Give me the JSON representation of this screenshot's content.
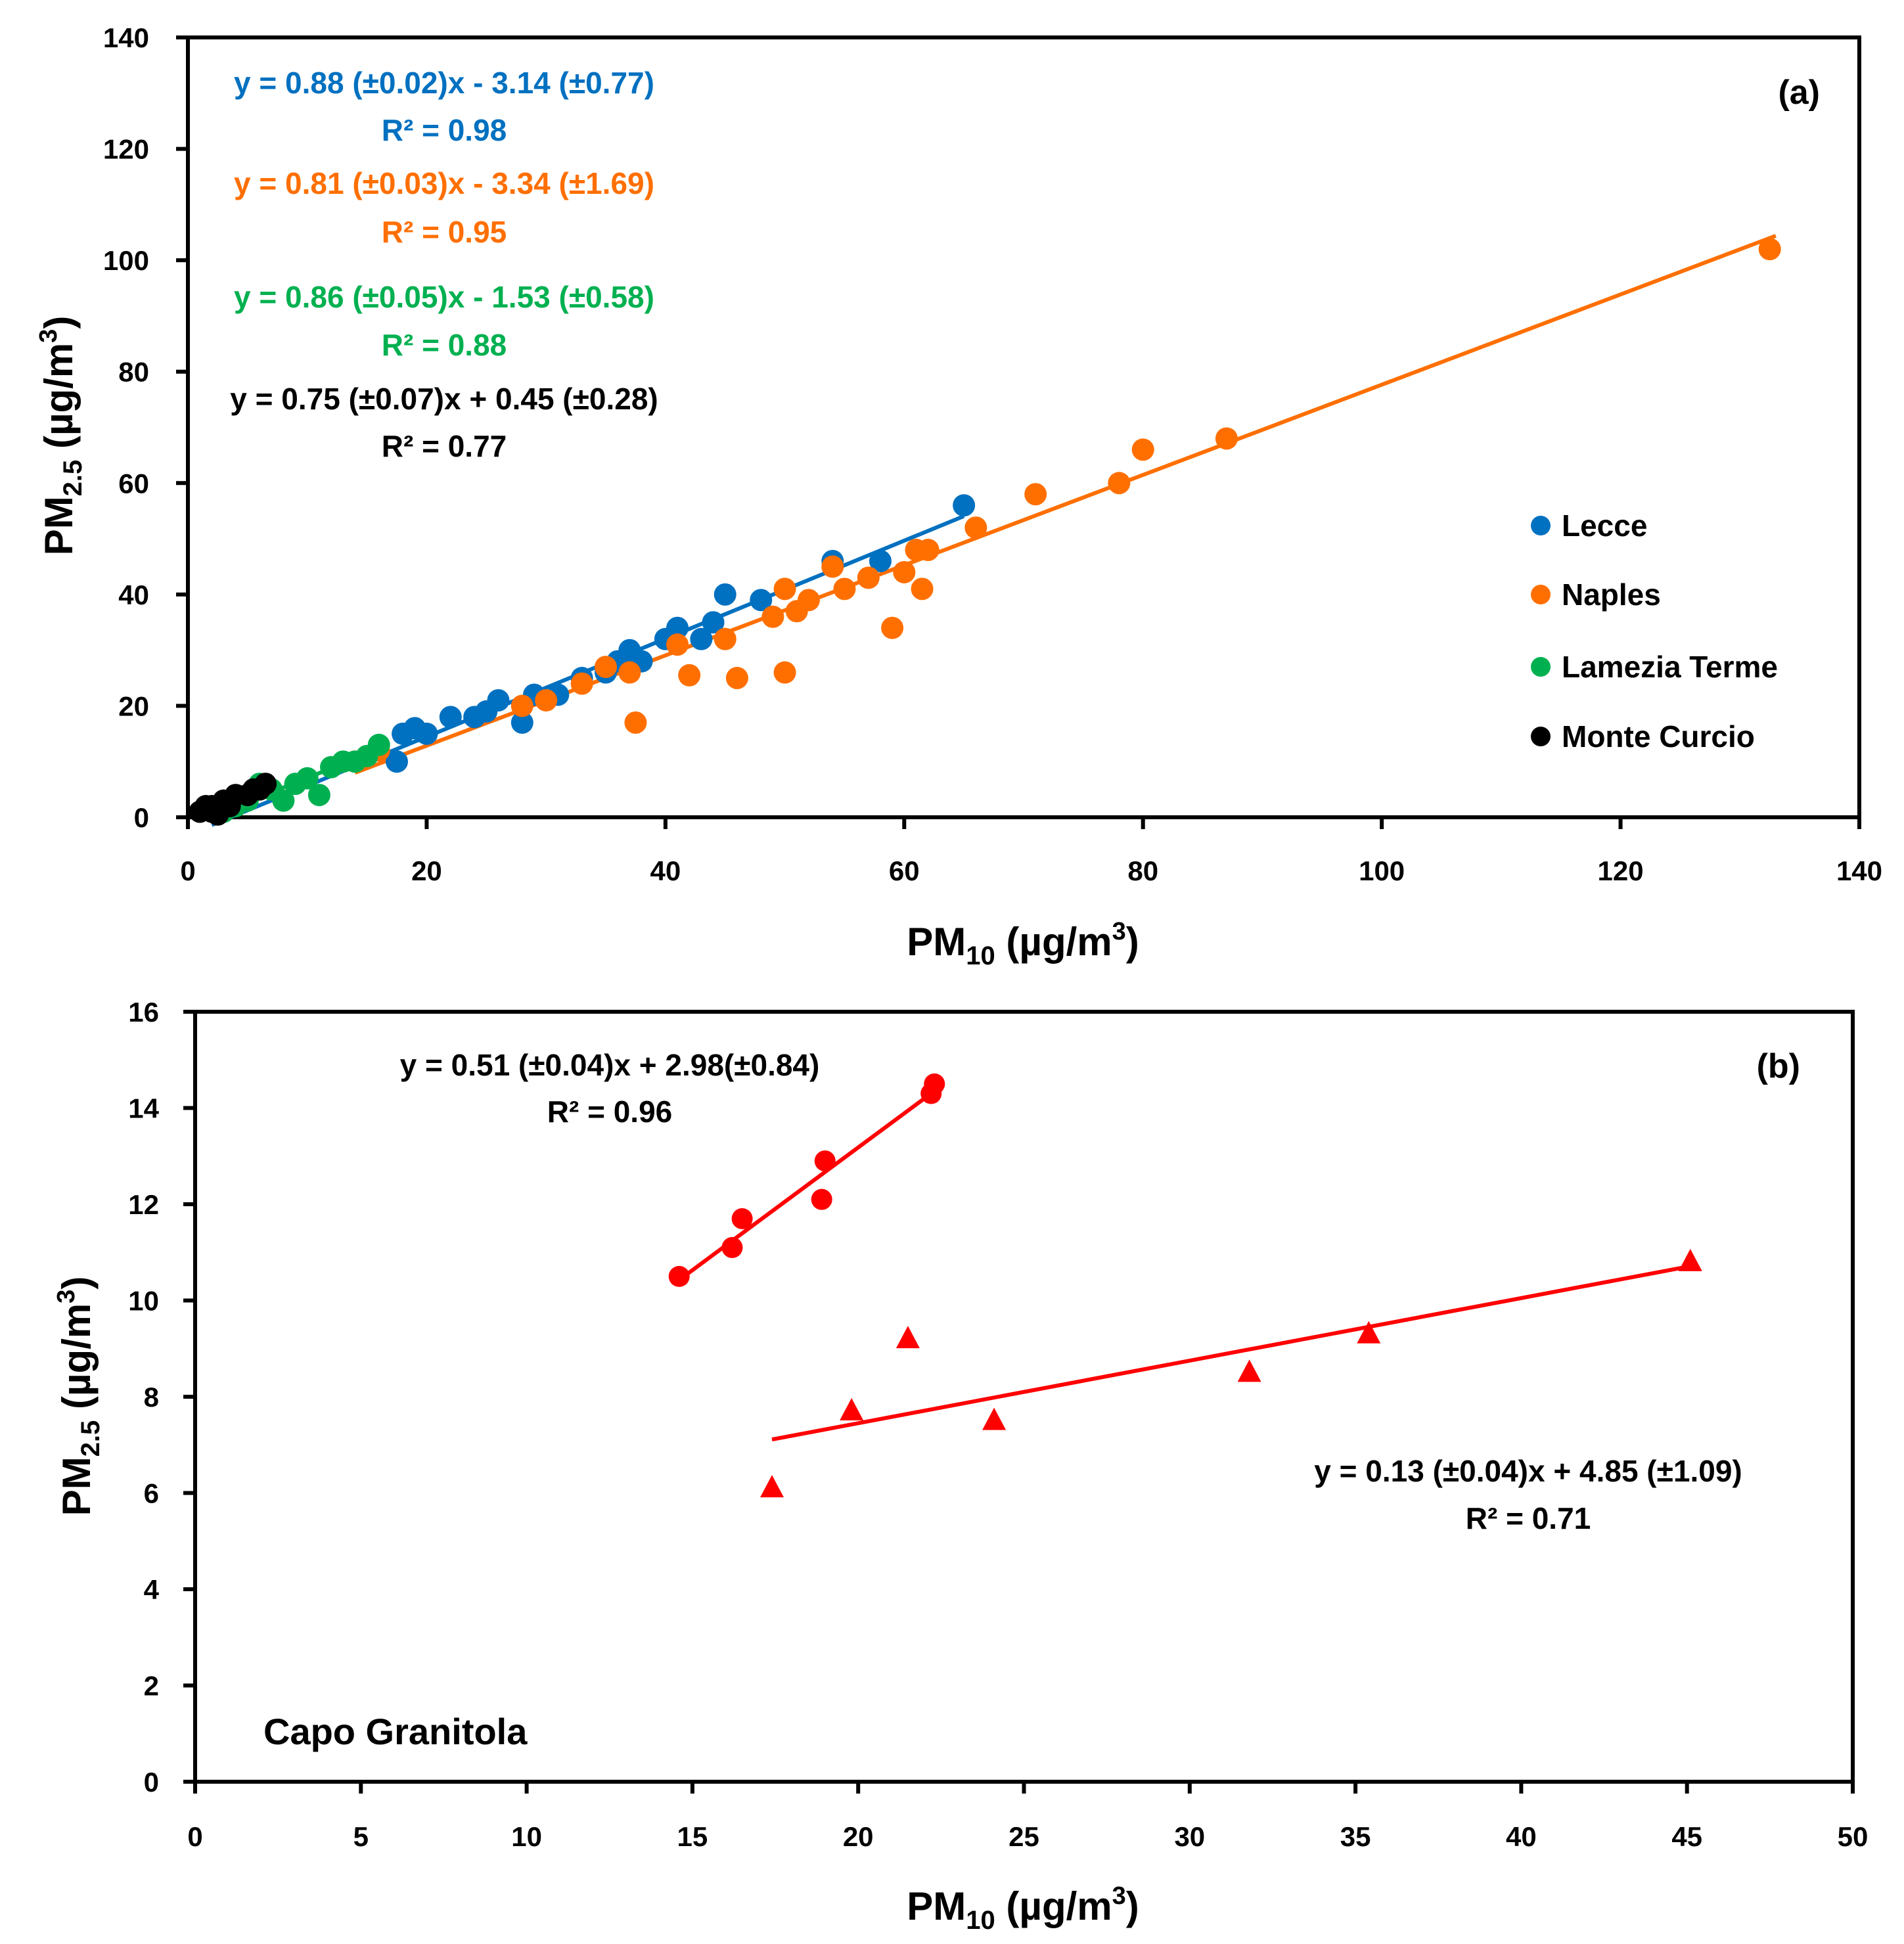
{
  "chart_data": [
    {
      "type": "scatter",
      "panel_label": "(a)",
      "xlabel": {
        "main": "PM",
        "sub": "10",
        "unit": " (µg/m",
        "sup": "3",
        "close": ")"
      },
      "ylabel": {
        "main": "PM",
        "sub": "2.5",
        "unit": " (µg/m",
        "sup": "3",
        "close": ")"
      },
      "xlim": [
        0,
        140
      ],
      "ylim": [
        0,
        140
      ],
      "xticks": [
        "0",
        "20",
        "40",
        "60",
        "80",
        "100",
        "120",
        "140"
      ],
      "yticks": [
        "0",
        "20",
        "40",
        "60",
        "80",
        "100",
        "120",
        "140"
      ],
      "legend_position": "center-right",
      "series": [
        {
          "name": "Lecce",
          "color": "#0070C0",
          "equation": "y = 0.88 (±0.02)x - 3.14 (±0.77)",
          "r2": "R² = 0.98",
          "fit": {
            "slope": 0.88,
            "intercept": -3.14,
            "xrange": [
              2,
              65
            ]
          },
          "points": [
            [
              17.5,
              10
            ],
            [
              18,
              15
            ],
            [
              19,
              16
            ],
            [
              20,
              15
            ],
            [
              22,
              18
            ],
            [
              24,
              18
            ],
            [
              25,
              19
            ],
            [
              26,
              21
            ],
            [
              28,
              17
            ],
            [
              29,
              22
            ],
            [
              31,
              22
            ],
            [
              33,
              25
            ],
            [
              35,
              26
            ],
            [
              36,
              28
            ],
            [
              37,
              30
            ],
            [
              38,
              28
            ],
            [
              40,
              32
            ],
            [
              41,
              34
            ],
            [
              43,
              32
            ],
            [
              44,
              35
            ],
            [
              45,
              40
            ],
            [
              48,
              39
            ],
            [
              54,
              46
            ],
            [
              58,
              46
            ],
            [
              65,
              56
            ]
          ]
        },
        {
          "name": "Naples",
          "color": "#FF6F00",
          "equation": "y = 0.81 (±0.03)x - 3.34 (±1.69)",
          "r2": "R² = 0.95",
          "fit": {
            "slope": 0.81,
            "intercept": -3.34,
            "xrange": [
              14,
              133
            ]
          },
          "points": [
            [
              14,
              10
            ],
            [
              16,
              12
            ],
            [
              28,
              20
            ],
            [
              30,
              21
            ],
            [
              33,
              24
            ],
            [
              35,
              27
            ],
            [
              37,
              26
            ],
            [
              37.5,
              17
            ],
            [
              41,
              31
            ],
            [
              42,
              25.5
            ],
            [
              45,
              32
            ],
            [
              46,
              25
            ],
            [
              49,
              36
            ],
            [
              50,
              26
            ],
            [
              50,
              41
            ],
            [
              51,
              37
            ],
            [
              52,
              39
            ],
            [
              54,
              45
            ],
            [
              55,
              41
            ],
            [
              57,
              43
            ],
            [
              59,
              34
            ],
            [
              60,
              44
            ],
            [
              61,
              48
            ],
            [
              61.5,
              41
            ],
            [
              62,
              48
            ],
            [
              66,
              52
            ],
            [
              71,
              58
            ],
            [
              78,
              60
            ],
            [
              80,
              66
            ],
            [
              87,
              68
            ],
            [
              132.5,
              102
            ]
          ]
        },
        {
          "name": "Lamezia Terme",
          "color": "#00B050",
          "equation": "y = 0.86 (±0.05)x - 1.53 (±0.58)",
          "r2": "R² = 0.88",
          "fit": {
            "slope": 0.86,
            "intercept": -1.53,
            "xrange": [
              3,
              16
            ]
          },
          "points": [
            [
              3,
              1
            ],
            [
              4,
              2
            ],
            [
              5,
              3
            ],
            [
              6,
              6
            ],
            [
              7,
              5
            ],
            [
              8,
              3
            ],
            [
              9,
              6
            ],
            [
              10,
              7
            ],
            [
              11,
              4
            ],
            [
              12,
              9
            ],
            [
              13,
              10
            ],
            [
              14,
              10
            ],
            [
              15,
              11
            ],
            [
              16,
              13
            ]
          ]
        },
        {
          "name": "Monte Curcio",
          "color": "#000000",
          "equation": "y = 0.75 (±0.07)x + 0.45 (±0.28)",
          "r2": "R² = 0.77",
          "fit": {
            "slope": 0.75,
            "intercept": 0.45,
            "xrange": [
              1,
              6.5
            ]
          },
          "points": [
            [
              1,
              1
            ],
            [
              1.5,
              2
            ],
            [
              2,
              1
            ],
            [
              2,
              2
            ],
            [
              2.5,
              0.5
            ],
            [
              3,
              3
            ],
            [
              3.5,
              2
            ],
            [
              4,
              4
            ],
            [
              5,
              4
            ],
            [
              5.5,
              5
            ],
            [
              6,
              5
            ],
            [
              6.5,
              6
            ]
          ]
        }
      ]
    },
    {
      "type": "scatter",
      "panel_label": "(b)",
      "annotation": "Capo Granitola",
      "xlabel": {
        "main": "PM",
        "sub": "10",
        "unit": " (µg/m",
        "sup": "3",
        "close": ")"
      },
      "ylabel": {
        "main": "PM",
        "sub": "2.5",
        "unit": " (µg/m",
        "sup": "3",
        "close": ")"
      },
      "xlim": [
        0,
        50
      ],
      "ylim": [
        0,
        16
      ],
      "xticks": [
        "0",
        "5",
        "10",
        "15",
        "20",
        "25",
        "30",
        "35",
        "40",
        "45",
        "50"
      ],
      "yticks": [
        "0",
        "2",
        "4",
        "6",
        "8",
        "10",
        "12",
        "14",
        "16"
      ],
      "series": [
        {
          "name": "circles",
          "marker": "circle",
          "color": "#FF0000",
          "equation": "y = 0.51 (±0.04)x + 2.98(±0.84)",
          "r2": "R² = 0.96",
          "fit": {
            "slope": 0.51,
            "intercept": 2.98,
            "xrange": [
              14.6,
              22.3
            ]
          },
          "points": [
            [
              14.6,
              10.5
            ],
            [
              16.2,
              11.1
            ],
            [
              16.5,
              11.7
            ],
            [
              18.9,
              12.1
            ],
            [
              19.0,
              12.9
            ],
            [
              22.2,
              14.3
            ],
            [
              22.3,
              14.5
            ]
          ]
        },
        {
          "name": "triangles",
          "marker": "triangle",
          "color": "#FF0000",
          "equation": "y = 0.13 (±0.04)x + 4.85 (±1.09)",
          "r2": "R² = 0.71",
          "fit": {
            "slope": 0.13,
            "intercept": 4.85,
            "xrange": [
              17.4,
              45.1
            ]
          },
          "points": [
            [
              17.4,
              6.1
            ],
            [
              19.8,
              7.7
            ],
            [
              21.5,
              9.2
            ],
            [
              24.1,
              7.5
            ],
            [
              31.8,
              8.5
            ],
            [
              35.4,
              9.3
            ],
            [
              45.1,
              10.8
            ]
          ]
        }
      ]
    }
  ]
}
